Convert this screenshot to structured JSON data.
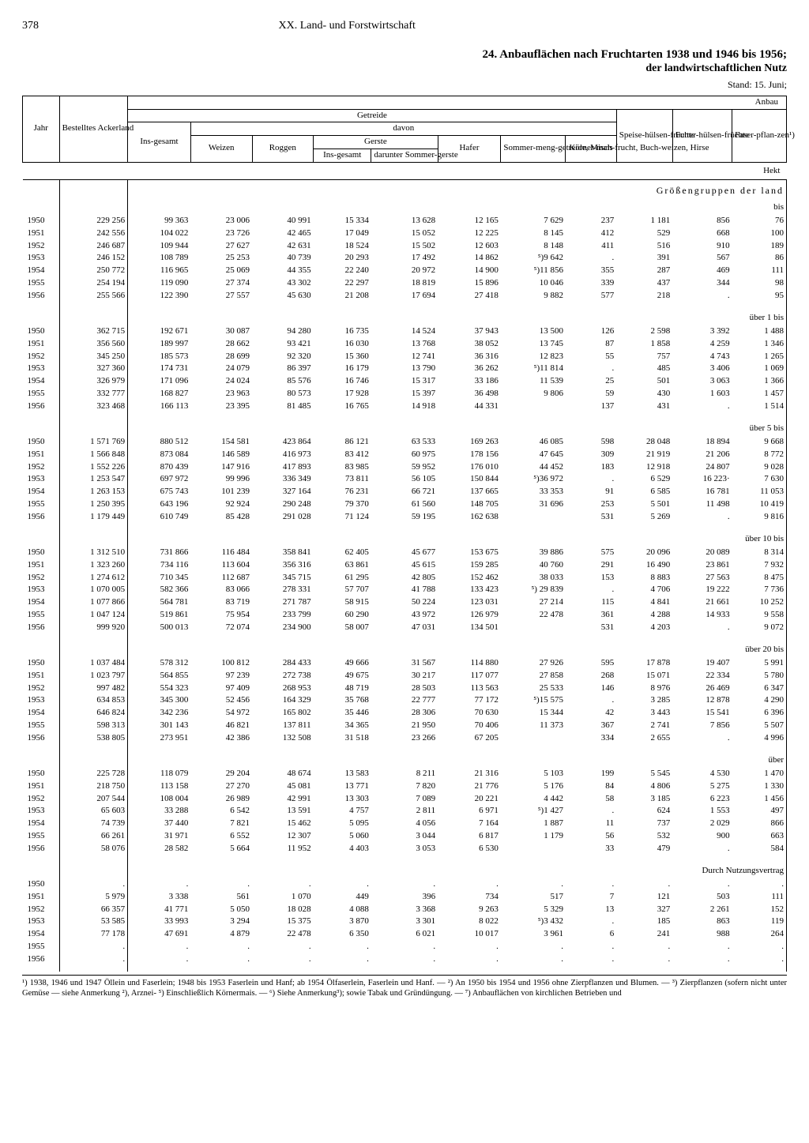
{
  "page_number": "378",
  "section_title": "XX. Land- und Forstwirtschaft",
  "table_title": "24. Anbauflächen nach Fruchtarten 1938 und 1946 bis 1956;",
  "table_subtitle": "der landwirtschaftlichen Nutz",
  "stand": "Stand: 15. Juni;",
  "anbau_label": "Anbau",
  "getreide_label": "Getreide",
  "davon_label": "davon",
  "headers": {
    "jahr": "Jahr",
    "bestelltes_ackerland": "Bestelltes Ackerland",
    "ins_gesamt": "Ins-gesamt",
    "weizen": "Weizen",
    "roggen": "Roggen",
    "gerste": "Gerste",
    "gerste_ins": "Ins-gesamt",
    "gerste_sommer": "darunter Sommer-gerste",
    "hafer": "Hafer",
    "sommer_meng": "Sommer-meng-getreide, Misch-frucht, Buch-weizen, Hirse",
    "koerner_mais": "Körner-mais",
    "speise_huelsen": "Speise-hülsen-früchte",
    "futter_huelsen": "Futter-hülsen-früchte",
    "faser_pflanzen": "Faser-pflan-zen¹)"
  },
  "unit_row": "Hekt",
  "section_heading": "Größengruppen der land",
  "group_labels": [
    "bis",
    "über 1 bis",
    "über 5 bis",
    "über 10 bis",
    "über 20 bis",
    "über",
    "Durch Nutzungsvertrag"
  ],
  "groups": [
    [
      [
        "1950",
        "229 256",
        "99 363",
        "23 006",
        "40 991",
        "15 334",
        "13 628",
        "12 165",
        "7 629",
        "237",
        "1 181",
        "856",
        "76"
      ],
      [
        "1951",
        "242 556",
        "104 022",
        "23 726",
        "42 465",
        "17 049",
        "15 052",
        "12 225",
        "8 145",
        "412",
        "529",
        "668",
        "100"
      ],
      [
        "1952",
        "246 687",
        "109 944",
        "27 627",
        "42 631",
        "18 524",
        "15 502",
        "12 603",
        "8 148",
        "411",
        "516",
        "910",
        "189"
      ],
      [
        "1953",
        "246 152",
        "108 789",
        "25 253",
        "40 739",
        "20 293",
        "17 492",
        "14 862",
        "⁵)9 642",
        ".",
        "391",
        "567",
        "86"
      ],
      [
        "1954",
        "250 772",
        "116 965",
        "25 069",
        "44 355",
        "22 240",
        "20 972",
        "14 900",
        "⁵)11 856",
        "355",
        "287",
        "469",
        "111"
      ],
      [
        "1955",
        "254 194",
        "119 090",
        "27 374",
        "43 302",
        "22 297",
        "18 819",
        "15 896",
        "10 046",
        "339",
        "437",
        "344",
        "98"
      ],
      [
        "1956",
        "255 566",
        "122 390",
        "27 557",
        "45 630",
        "21 208",
        "17 694",
        "27 418",
        "9 882",
        "577",
        "218",
        ".",
        "95"
      ]
    ],
    [
      [
        "1950",
        "362 715",
        "192 671",
        "30 087",
        "94 280",
        "16 735",
        "14 524",
        "37 943",
        "13 500",
        "126",
        "2 598",
        "3 392",
        "1 488"
      ],
      [
        "1951",
        "356 560",
        "189 997",
        "28 662",
        "93 421",
        "16 030",
        "13 768",
        "38 052",
        "13 745",
        "87",
        "1 858",
        "4 259",
        "1 346"
      ],
      [
        "1952",
        "345 250",
        "185 573",
        "28 699",
        "92 320",
        "15 360",
        "12 741",
        "36 316",
        "12 823",
        "55",
        "757",
        "4 743",
        "1 265"
      ],
      [
        "1953",
        "327 360",
        "174 731",
        "24 079",
        "86 397",
        "16 179",
        "13 790",
        "36 262",
        "⁵)11 814",
        ".",
        "485",
        "3 406",
        "1 069"
      ],
      [
        "1954",
        "326 979",
        "171 096",
        "24 024",
        "85 576",
        "16 746",
        "15 317",
        "33 186",
        "11 539",
        "25",
        "501",
        "3 063",
        "1 366"
      ],
      [
        "1955",
        "332 777",
        "168 827",
        "23 963",
        "80 573",
        "17 928",
        "15 397",
        "36 498",
        "9 806",
        "59",
        "430",
        "1 603",
        "1 457"
      ],
      [
        "1956",
        "323 468",
        "166 113",
        "23 395",
        "81 485",
        "16 765",
        "14 918",
        "44 331",
        "",
        "137",
        "431",
        ".",
        "1 514"
      ]
    ],
    [
      [
        "1950",
        "1 571 769",
        "880 512",
        "154 581",
        "423 864",
        "86 121",
        "63 533",
        "169 263",
        "46 085",
        "598",
        "28 048",
        "18 894",
        "9 668"
      ],
      [
        "1951",
        "1 566 848",
        "873 084",
        "146 589",
        "416 973",
        "83 412",
        "60 975",
        "178 156",
        "47 645",
        "309",
        "21 919",
        "21 206",
        "8 772"
      ],
      [
        "1952",
        "1 552 226",
        "870 439",
        "147 916",
        "417 893",
        "83 985",
        "59 952",
        "176 010",
        "44 452",
        "183",
        "12 918",
        "24 807",
        "9 028"
      ],
      [
        "1953",
        "1 253 547",
        "697 972",
        "99 996",
        "336 349",
        "73 811",
        "56 105",
        "150 844",
        "⁵)36 972",
        ".",
        "6 529",
        "16 223·",
        "7 630"
      ],
      [
        "1954",
        "1 263 153",
        "675 743",
        "101 239",
        "327 164",
        "76 231",
        "66 721",
        "137 665",
        "33 353",
        "91",
        "6 585",
        "16 781",
        "11 053"
      ],
      [
        "1955",
        "1 250 395",
        "643 196",
        "92 924",
        "290 248",
        "79 370",
        "61 560",
        "148 705",
        "31 696",
        "253",
        "5 501",
        "11 498",
        "10 419"
      ],
      [
        "1956",
        "1 179 449",
        "610 749",
        "85 428",
        "291 028",
        "71 124",
        "59 195",
        "162 638",
        "",
        "531",
        "5 269",
        ".",
        "9 816"
      ]
    ],
    [
      [
        "1950",
        "1 312 510",
        "731 866",
        "116 484",
        "358 841",
        "62 405",
        "45 677",
        "153 675",
        "39 886",
        "575",
        "20 096",
        "20 089",
        "8 314"
      ],
      [
        "1951",
        "1 323 260",
        "734 116",
        "113 604",
        "356 316",
        "63 861",
        "45 615",
        "159 285",
        "40 760",
        "291",
        "16 490",
        "23 861",
        "7 932"
      ],
      [
        "1952",
        "1 274 612",
        "710 345",
        "112 687",
        "345 715",
        "61 295",
        "42 805",
        "152 462",
        "38 033",
        "153",
        "8 883",
        "27 563",
        "8 475"
      ],
      [
        "1953",
        "1 070 005",
        "582 366",
        "83 066",
        "278 331",
        "57 707",
        "41 788",
        "133 423",
        "⁵) 29 839",
        ".",
        "4 706",
        "19 222",
        "7 736"
      ],
      [
        "1954",
        "1 077 866",
        "564 781",
        "83 719",
        "271 787",
        "58 915",
        "50 224",
        "123 031",
        "27 214",
        "115",
        "4 841",
        "21 661",
        "10 252"
      ],
      [
        "1955",
        "1 047 124",
        "519 861",
        "75 954",
        "233 799",
        "60 290",
        "43 972",
        "126 979",
        "22 478",
        "361",
        "4 288",
        "14 933",
        "9 558"
      ],
      [
        "1956",
        "999 920",
        "500 013",
        "72 074",
        "234 900",
        "58 007",
        "47 031",
        "134 501",
        "",
        "531",
        "4 203",
        ".",
        "9 072"
      ]
    ],
    [
      [
        "1950",
        "1 037 484",
        "578 312",
        "100 812",
        "284 433",
        "49 666",
        "31 567",
        "114 880",
        "27 926",
        "595",
        "17 878",
        "19 407",
        "5 991"
      ],
      [
        "1951",
        "1 023 797",
        "564 855",
        "97 239",
        "272 738",
        "49 675",
        "30 217",
        "117 077",
        "27 858",
        "268",
        "15 071",
        "22 334",
        "5 780"
      ],
      [
        "1952",
        "997 482",
        "554 323",
        "97 409",
        "268 953",
        "48 719",
        "28 503",
        "113 563",
        "25 533",
        "146",
        "8 976",
        "26 469",
        "6 347"
      ],
      [
        "1953",
        "634 853",
        "345 300",
        "52 456",
        "164 329",
        "35 768",
        "22 777",
        "77 172",
        "⁵)15 575",
        ".",
        "3 285",
        "12 878",
        "4 290"
      ],
      [
        "1954",
        "646 824",
        "342 236",
        "54 972",
        "165 802",
        "35 446",
        "28 306",
        "70 630",
        "15 344",
        "42",
        "3 443",
        "15 541",
        "6 396"
      ],
      [
        "1955",
        "598 313",
        "301 143",
        "46 821",
        "137 811",
        "34 365",
        "21 950",
        "70 406",
        "11 373",
        "367",
        "2 741",
        "7 856",
        "5 507"
      ],
      [
        "1956",
        "538 805",
        "273 951",
        "42 386",
        "132 508",
        "31 518",
        "23 266",
        "67 205",
        "",
        "334",
        "2 655",
        ".",
        "4 996"
      ]
    ],
    [
      [
        "1950",
        "225 728",
        "118 079",
        "29 204",
        "48 674",
        "13 583",
        "8 211",
        "21 316",
        "5 103",
        "199",
        "5 545",
        "4 530",
        "1 470"
      ],
      [
        "1951",
        "218 750",
        "113 158",
        "27 270",
        "45 081",
        "13 771",
        "7 820",
        "21 776",
        "5 176",
        "84",
        "4 806",
        "5 275",
        "1 330"
      ],
      [
        "1952",
        "207 544",
        "108 004",
        "26 989",
        "42 991",
        "13 303",
        "7 089",
        "20 221",
        "4 442",
        "58",
        "3 185",
        "6 223",
        "1 456"
      ],
      [
        "1953",
        "65 603",
        "33 288",
        "6 542",
        "13 591",
        "4 757",
        "2 811",
        "6 971",
        "⁵)1 427",
        ".",
        "624",
        "1 553",
        "497"
      ],
      [
        "1954",
        "74 739",
        "37 440",
        "7 821",
        "15 462",
        "5 095",
        "4 056",
        "7 164",
        "1 887",
        "11",
        "737",
        "2 029",
        "866"
      ],
      [
        "1955",
        "66 261",
        "31 971",
        "6 552",
        "12 307",
        "5 060",
        "3 044",
        "6 817",
        "1 179",
        "56",
        "532",
        "900",
        "663"
      ],
      [
        "1956",
        "58 076",
        "28 582",
        "5 664",
        "11 952",
        "4 403",
        "3 053",
        "6 530",
        "",
        "33",
        "479",
        ".",
        "584"
      ]
    ],
    [
      [
        "1950",
        ".",
        ".",
        ".",
        ".",
        ".",
        ".",
        ".",
        ".",
        ".",
        ".",
        ".",
        "."
      ],
      [
        "1951",
        "5 979",
        "3 338",
        "561",
        "1 070",
        "449",
        "396",
        "734",
        "517",
        "7",
        "121",
        "503",
        "111"
      ],
      [
        "1952",
        "66 357",
        "41 771",
        "5 050",
        "18 028",
        "4 088",
        "3 368",
        "9 263",
        "5 329",
        "13",
        "327",
        "2 261",
        "152"
      ],
      [
        "1953",
        "53 585",
        "33 993",
        "3 294",
        "15 375",
        "3 870",
        "3 301",
        "8 022",
        "⁵)3 432",
        ".",
        "185",
        "863",
        "119"
      ],
      [
        "1954",
        "77 178",
        "47 691",
        "4 879",
        "22 478",
        "6 350",
        "6 021",
        "10 017",
        "3 961",
        "6",
        "241",
        "988",
        "264"
      ],
      [
        "1955",
        ".",
        ".",
        ".",
        ".",
        ".",
        ".",
        ".",
        ".",
        ".",
        ".",
        ".",
        "."
      ],
      [
        "1956",
        ".",
        ".",
        ".",
        ".",
        ".",
        ".",
        ".",
        ".",
        ".",
        ".",
        ".",
        "."
      ]
    ]
  ],
  "footnotes": "¹) 1938, 1946 und 1947 Öllein und Faserlein; 1948 bis 1953 Faserlein und Hanf; ab 1954 Ölfaserlein, Faserlein und Hanf. — ²) An 1950 bis 1954 und 1956 ohne Zierpflanzen und Blumen. — ³) Zierpflanzen (sofern nicht unter Gemüse — siehe Anmerkung ²), Arznei- ⁵) Einschließlich Körnermais. — ⁶) Siehe Anmerkung³); sowie Tabak und Gründüngung. — ⁷) Anbauflächen von kirchlichen Betrieben und"
}
